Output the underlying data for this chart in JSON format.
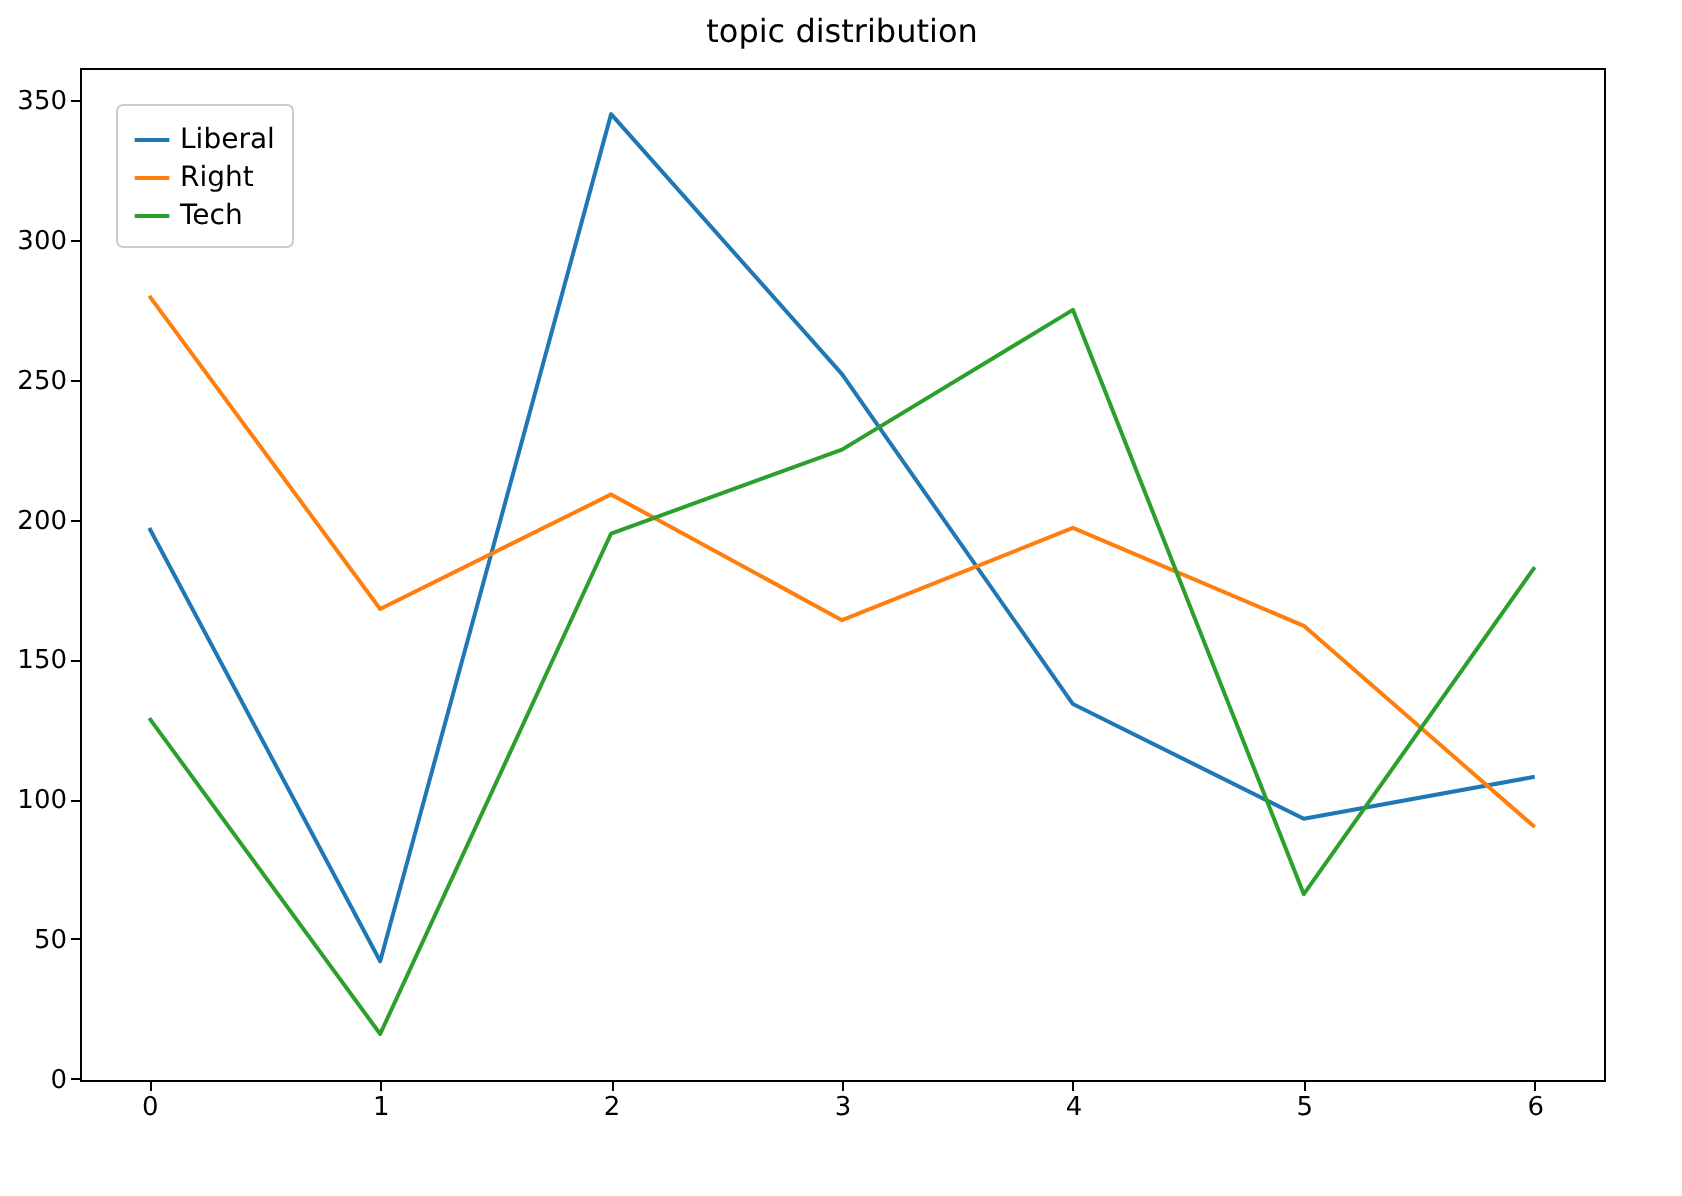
{
  "chart_data": {
    "type": "line",
    "title": "topic distribution",
    "x": [
      0,
      1,
      2,
      3,
      4,
      5,
      6
    ],
    "xlim": [
      -0.3,
      6.3
    ],
    "xticks": [
      0,
      1,
      2,
      3,
      4,
      5,
      6
    ],
    "ylim": [
      -0.45,
      361.5
    ],
    "yticks": [
      0,
      50,
      100,
      150,
      200,
      250,
      300,
      350
    ],
    "legend": "top left",
    "series": [
      {
        "name": "Liberal",
        "color": "#1f77b4",
        "values": [
          197,
          42,
          345,
          252,
          134,
          93,
          108
        ]
      },
      {
        "name": "Right",
        "color": "#ff7f0e",
        "values": [
          280,
          168,
          209,
          164,
          197,
          162,
          90
        ]
      },
      {
        "name": "Tech",
        "color": "#2ca02c",
        "values": [
          129,
          16,
          195,
          225,
          275,
          66,
          183
        ]
      }
    ]
  }
}
